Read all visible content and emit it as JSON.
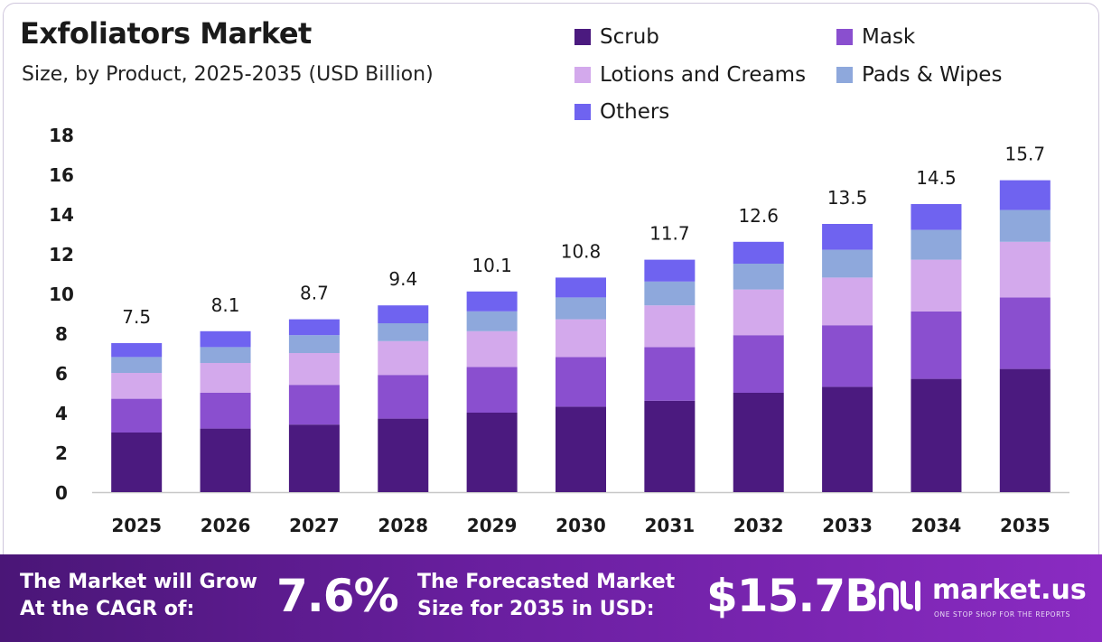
{
  "header": {
    "title": "Exfoliators Market",
    "subtitle": "Size, by Product, 2025-2035 (USD Billion)"
  },
  "chart_data": {
    "type": "bar",
    "stacked": true,
    "title": "Exfoliators Market",
    "subtitle": "Size, by Product, 2025-2035 (USD Billion)",
    "xlabel": "",
    "ylabel": "",
    "categories": [
      "2025",
      "2026",
      "2027",
      "2028",
      "2029",
      "2030",
      "2031",
      "2032",
      "2033",
      "2034",
      "2035"
    ],
    "series": [
      {
        "name": "Scrub",
        "color": "#4b1a7f",
        "values": [
          3.0,
          3.2,
          3.4,
          3.7,
          4.0,
          4.3,
          4.6,
          5.0,
          5.3,
          5.7,
          6.2
        ]
      },
      {
        "name": "Mask",
        "color": "#8a4fcf",
        "values": [
          1.7,
          1.8,
          2.0,
          2.2,
          2.3,
          2.5,
          2.7,
          2.9,
          3.1,
          3.4,
          3.6
        ]
      },
      {
        "name": "Lotions and Creams",
        "color": "#d3a9ec",
        "values": [
          1.3,
          1.5,
          1.6,
          1.7,
          1.8,
          1.9,
          2.1,
          2.3,
          2.4,
          2.6,
          2.8
        ]
      },
      {
        "name": "Pads & Wipes",
        "color": "#8ea8dc",
        "values": [
          0.8,
          0.8,
          0.9,
          0.9,
          1.0,
          1.1,
          1.2,
          1.3,
          1.4,
          1.5,
          1.6
        ]
      },
      {
        "name": "Others",
        "color": "#6f63f0",
        "values": [
          0.7,
          0.8,
          0.8,
          0.9,
          1.0,
          1.0,
          1.1,
          1.1,
          1.3,
          1.3,
          1.5
        ]
      }
    ],
    "totals": [
      "7.5",
      "8.1",
      "8.7",
      "9.4",
      "10.1",
      "10.8",
      "11.7",
      "12.6",
      "13.5",
      "14.5",
      "15.7"
    ],
    "ylim": [
      0,
      18
    ],
    "yticks": [
      0,
      2,
      4,
      6,
      8,
      10,
      12,
      14,
      16,
      18
    ],
    "grid": false,
    "legend_position": "top-right"
  },
  "banner": {
    "cagr_label": "The Market will Grow\nAt the CAGR of:",
    "cagr_value": "7.6%",
    "forecast_label": "The Forecasted Market\nSize for 2035 in USD:",
    "forecast_value": "$15.7B",
    "brand_name": "market.us",
    "brand_tagline": "ONE STOP SHOP FOR THE REPORTS"
  }
}
